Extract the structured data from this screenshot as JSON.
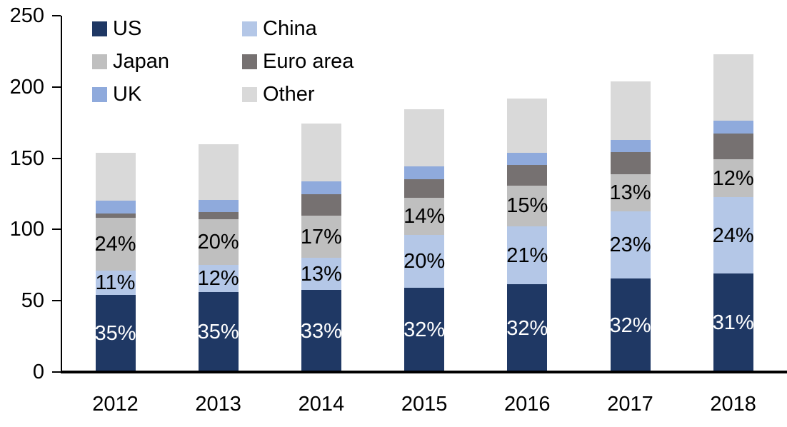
{
  "chart_data": {
    "type": "bar",
    "stacked": true,
    "title": "",
    "xlabel": "",
    "ylabel": "",
    "categories": [
      "2012",
      "2013",
      "2014",
      "2015",
      "2016",
      "2017",
      "2018"
    ],
    "series": [
      {
        "name": "US",
        "color": "#1F3864",
        "values": [
          54,
          56,
          57.5,
          59,
          61.5,
          65.5,
          69
        ],
        "labels": [
          "35%",
          "35%",
          "33%",
          "32%",
          "32%",
          "32%",
          "31%"
        ],
        "label_color": "#FFFFFF"
      },
      {
        "name": "China",
        "color": "#B4C7E7",
        "values": [
          17,
          19,
          22.5,
          37,
          40.5,
          47,
          53.5
        ],
        "labels": [
          "11%",
          "12%",
          "13%",
          "20%",
          "21%",
          "23%",
          "24%"
        ],
        "label_color": "#000000"
      },
      {
        "name": "Japan",
        "color": "#BFBFBF",
        "values": [
          37,
          32,
          29.5,
          26,
          29,
          26.5,
          27
        ],
        "labels": [
          "24%",
          "20%",
          "17%",
          "14%",
          "15%",
          "13%",
          "12%"
        ],
        "label_color": "#000000"
      },
      {
        "name": "Euro area",
        "color": "#767171",
        "values": [
          3,
          5,
          15,
          13.5,
          14.5,
          15.5,
          18
        ],
        "labels": null,
        "label_color": null
      },
      {
        "name": "UK",
        "color": "#8FAADC",
        "values": [
          9,
          8.5,
          9.5,
          9,
          8.5,
          8.5,
          9
        ],
        "labels": null,
        "label_color": null
      },
      {
        "name": "Other",
        "color": "#D9D9D9",
        "values": [
          34,
          39.5,
          40.5,
          40,
          38,
          41,
          46.5
        ],
        "labels": null,
        "label_color": null
      }
    ],
    "bar_totals": [
      154,
      160,
      174.5,
      184.5,
      192,
      204,
      223
    ],
    "y_axis": {
      "min": 0,
      "max": 250,
      "step": 50,
      "tick_labels": [
        "0",
        "50",
        "100",
        "150",
        "200",
        "250"
      ]
    },
    "legend": {
      "position": "top-left",
      "columns": 2,
      "order": [
        "US",
        "China",
        "Japan",
        "Euro area",
        "UK",
        "Other"
      ]
    },
    "grid": false,
    "axis_color": "#000000"
  }
}
